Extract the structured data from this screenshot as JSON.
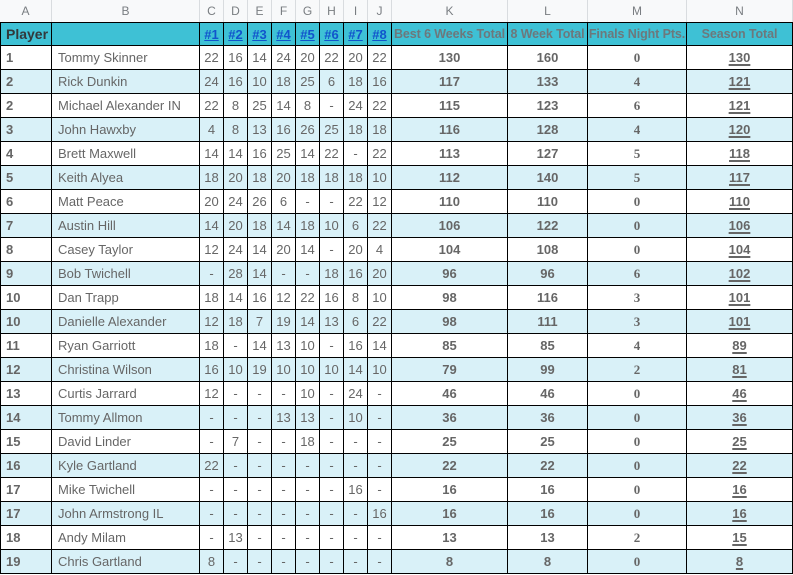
{
  "sheet": {
    "column_letters": [
      "A",
      "B",
      "C",
      "D",
      "E",
      "F",
      "G",
      "H",
      "I",
      "J",
      "K",
      "L",
      "M",
      "N"
    ]
  },
  "header": {
    "player_label": "Player",
    "week_links": [
      "#1",
      "#2",
      "#3",
      "#4",
      "#5",
      "#6",
      "#7",
      "#8"
    ],
    "best6_label": "Best 6 Weeks Total",
    "eight_week_label": "8 Week Total",
    "finals_label": "Finals Night Pts.",
    "season_label": "Season Total"
  },
  "colors": {
    "header_bg": "#3ec1d5",
    "alt_row_bg": "#d9f1f8",
    "link_blue": "#1155cc",
    "grid_border": "#000000",
    "letters_bg": "#f8f9fa",
    "value_gray": "#666666"
  },
  "rows": [
    {
      "rank": "1",
      "name": "Tommy Skinner",
      "weeks": [
        "22",
        "16",
        "14",
        "24",
        "20",
        "22",
        "20",
        "22"
      ],
      "best6": "130",
      "eight_week": "160",
      "finals": "0",
      "season": "130"
    },
    {
      "rank": "2",
      "name": "Rick Dunkin",
      "weeks": [
        "24",
        "16",
        "10",
        "18",
        "25",
        "6",
        "18",
        "16"
      ],
      "best6": "117",
      "eight_week": "133",
      "finals": "4",
      "season": "121"
    },
    {
      "rank": "2",
      "name": "Michael Alexander IN",
      "weeks": [
        "22",
        "8",
        "25",
        "14",
        "8",
        "-",
        "24",
        "22"
      ],
      "best6": "115",
      "eight_week": "123",
      "finals": "6",
      "season": "121"
    },
    {
      "rank": "3",
      "name": "John Hawxby",
      "weeks": [
        "4",
        "8",
        "13",
        "16",
        "26",
        "25",
        "18",
        "18"
      ],
      "best6": "116",
      "eight_week": "128",
      "finals": "4",
      "season": "120"
    },
    {
      "rank": "4",
      "name": "Brett Maxwell",
      "weeks": [
        "14",
        "14",
        "16",
        "25",
        "14",
        "22",
        "-",
        "22"
      ],
      "best6": "113",
      "eight_week": "127",
      "finals": "5",
      "season": "118"
    },
    {
      "rank": "5",
      "name": "Keith Alyea",
      "weeks": [
        "18",
        "20",
        "18",
        "20",
        "18",
        "18",
        "18",
        "10"
      ],
      "best6": "112",
      "eight_week": "140",
      "finals": "5",
      "season": "117"
    },
    {
      "rank": "6",
      "name": "Matt Peace",
      "weeks": [
        "20",
        "24",
        "26",
        "6",
        "-",
        "-",
        "22",
        "12"
      ],
      "best6": "110",
      "eight_week": "110",
      "finals": "0",
      "season": "110"
    },
    {
      "rank": "7",
      "name": "Austin Hill",
      "weeks": [
        "14",
        "20",
        "18",
        "14",
        "18",
        "10",
        "6",
        "22"
      ],
      "best6": "106",
      "eight_week": "122",
      "finals": "0",
      "season": "106"
    },
    {
      "rank": "8",
      "name": "Casey Taylor",
      "weeks": [
        "12",
        "24",
        "14",
        "20",
        "14",
        "-",
        "20",
        "4"
      ],
      "best6": "104",
      "eight_week": "108",
      "finals": "0",
      "season": "104"
    },
    {
      "rank": "9",
      "name": "Bob Twichell",
      "weeks": [
        "-",
        "28",
        "14",
        "-",
        "-",
        "18",
        "16",
        "20"
      ],
      "best6": "96",
      "eight_week": "96",
      "finals": "6",
      "season": "102"
    },
    {
      "rank": "10",
      "name": "Dan Trapp",
      "weeks": [
        "18",
        "14",
        "16",
        "12",
        "22",
        "16",
        "8",
        "10"
      ],
      "best6": "98",
      "eight_week": "116",
      "finals": "3",
      "season": "101"
    },
    {
      "rank": "10",
      "name": "Danielle Alexander",
      "weeks": [
        "12",
        "18",
        "7",
        "19",
        "14",
        "13",
        "6",
        "22"
      ],
      "best6": "98",
      "eight_week": "111",
      "finals": "3",
      "season": "101"
    },
    {
      "rank": "11",
      "name": "Ryan Garriott",
      "weeks": [
        "18",
        "-",
        "14",
        "13",
        "10",
        "-",
        "16",
        "14"
      ],
      "best6": "85",
      "eight_week": "85",
      "finals": "4",
      "season": "89"
    },
    {
      "rank": "12",
      "name": "Christina Wilson",
      "weeks": [
        "16",
        "10",
        "19",
        "10",
        "10",
        "10",
        "14",
        "10"
      ],
      "best6": "79",
      "eight_week": "99",
      "finals": "2",
      "season": "81"
    },
    {
      "rank": "13",
      "name": "Curtis Jarrard",
      "weeks": [
        "12",
        "-",
        "-",
        "-",
        "10",
        "-",
        "24",
        "-"
      ],
      "best6": "46",
      "eight_week": "46",
      "finals": "0",
      "season": "46"
    },
    {
      "rank": "14",
      "name": "Tommy Allmon",
      "weeks": [
        "-",
        "-",
        "-",
        "13",
        "13",
        "-",
        "10",
        "-"
      ],
      "best6": "36",
      "eight_week": "36",
      "finals": "0",
      "season": "36"
    },
    {
      "rank": "15",
      "name": "David Linder",
      "weeks": [
        "-",
        "7",
        "-",
        "-",
        "18",
        "-",
        "-",
        "-"
      ],
      "best6": "25",
      "eight_week": "25",
      "finals": "0",
      "season": "25"
    },
    {
      "rank": "16",
      "name": "Kyle Gartland",
      "weeks": [
        "22",
        "-",
        "-",
        "-",
        "-",
        "-",
        "-",
        "-"
      ],
      "best6": "22",
      "eight_week": "22",
      "finals": "0",
      "season": "22"
    },
    {
      "rank": "17",
      "name": "Mike Twichell",
      "weeks": [
        "-",
        "-",
        "-",
        "-",
        "-",
        "-",
        "16",
        "-"
      ],
      "best6": "16",
      "eight_week": "16",
      "finals": "0",
      "season": "16"
    },
    {
      "rank": "17",
      "name": "John Armstrong IL",
      "weeks": [
        "-",
        "-",
        "-",
        "-",
        "-",
        "-",
        "-",
        "16"
      ],
      "best6": "16",
      "eight_week": "16",
      "finals": "0",
      "season": "16"
    },
    {
      "rank": "18",
      "name": "Andy Milam",
      "weeks": [
        "-",
        "13",
        "-",
        "-",
        "-",
        "-",
        "-",
        "-"
      ],
      "best6": "13",
      "eight_week": "13",
      "finals": "2",
      "season": "15"
    },
    {
      "rank": "19",
      "name": "Chris Gartland",
      "weeks": [
        "8",
        "-",
        "-",
        "-",
        "-",
        "-",
        "-",
        "-"
      ],
      "best6": "8",
      "eight_week": "8",
      "finals": "0",
      "season": "8"
    }
  ]
}
